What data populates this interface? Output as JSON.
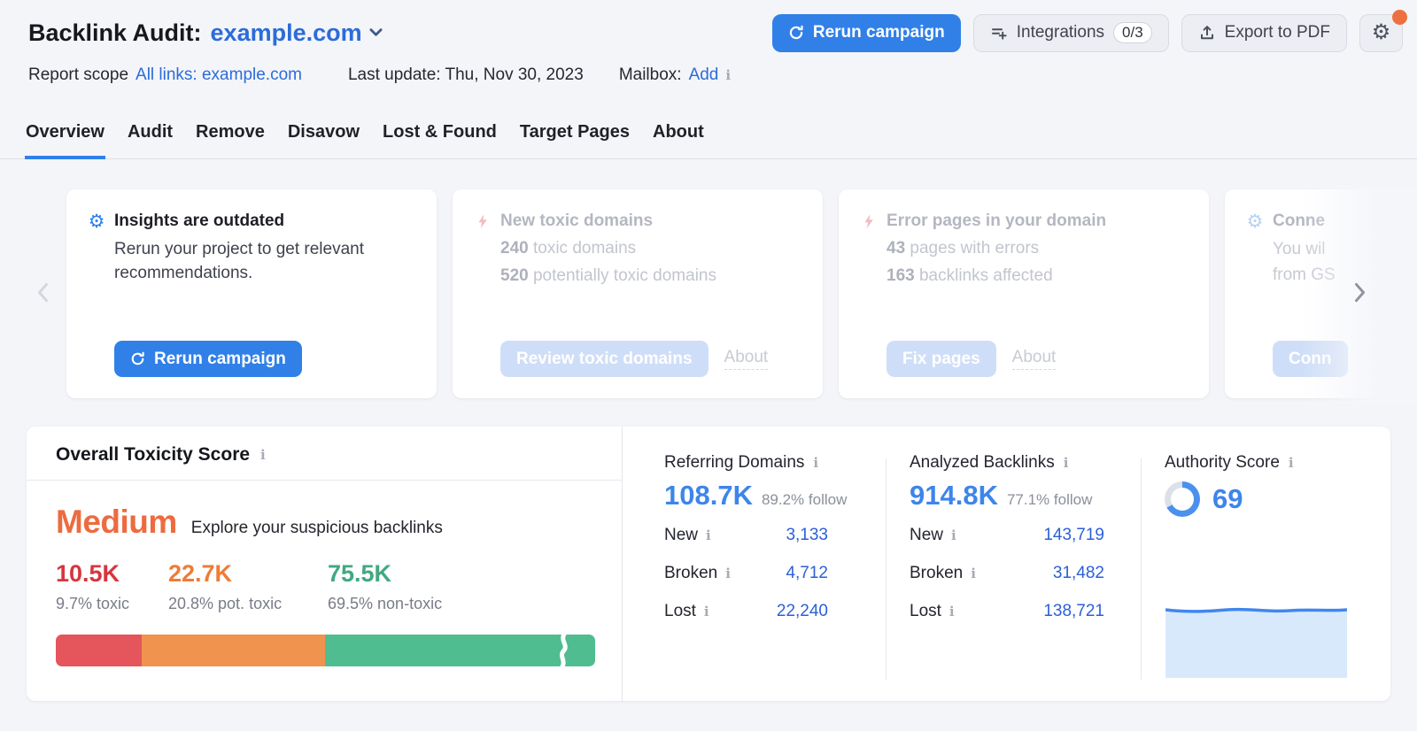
{
  "colors": {
    "accent_blue": "#3080e8",
    "link_blue": "#2b6cd9",
    "value_blue": "#2b5fd9",
    "big_number_blue": "#3d85ec",
    "notification_orange": "#ee7040",
    "donut_gray": "#dbe0e9",
    "donut_blue": "#4a90ee"
  },
  "header": {
    "title": "Backlink Audit:",
    "project": "example.com",
    "rerun_button": "Rerun campaign",
    "integrations_button": "Integrations",
    "integrations_badge": "0/3",
    "export_button": "Export to PDF",
    "meta": {
      "scope_label": "Report scope",
      "scope_link": "All links: example.com",
      "last_update": "Last update: Thu, Nov 30, 2023",
      "mailbox_label": "Mailbox:",
      "mailbox_link": "Add"
    }
  },
  "tabs": [
    "Overview",
    "Audit",
    "Remove",
    "Disavow",
    "Lost & Found",
    "Target Pages",
    "About"
  ],
  "cards": {
    "insights": {
      "title": "Insights are outdated",
      "body": "Rerun your project to get relevant recommendations.",
      "button": "Rerun campaign"
    },
    "toxic_domains": {
      "title": "New toxic domains",
      "stat1_value": "240",
      "stat1_label": "toxic domains",
      "stat2_value": "520",
      "stat2_label": "potentially toxic domains",
      "button": "Review toxic domains",
      "about": "About"
    },
    "error_pages": {
      "title": "Error pages in your domain",
      "stat1_value": "43",
      "stat1_label": "pages with errors",
      "stat2_value": "163",
      "stat2_label": "backlinks affected",
      "button": "Fix pages",
      "about": "About"
    },
    "connect": {
      "title": "Conne",
      "line1": "You wil",
      "line2": "from GS",
      "button": "Conn"
    }
  },
  "toxicity": {
    "title": "Overall Toxicity Score",
    "level": "Medium",
    "level_color": "#ed6b3f",
    "subtitle": "Explore your suspicious backlinks",
    "segments": [
      {
        "value": "10.5K",
        "label": "9.7% toxic",
        "color": "#d6363f",
        "bar_color": "#e4555c",
        "bar_pct": 16
      },
      {
        "value": "22.7K",
        "label": "20.8% pot. toxic",
        "color": "#ee7c38",
        "bar_color": "#f0934e",
        "bar_pct": 34
      },
      {
        "value": "75.5K",
        "label": "69.5% non-toxic",
        "color": "#42a881",
        "bar_color": "#4fbd8f",
        "bar_pct": 50
      }
    ]
  },
  "stats": {
    "referring_domains": {
      "title": "Referring Domains",
      "value": "108.7K",
      "follow": "89.2% follow",
      "rows": [
        {
          "label": "New",
          "value": "3,133"
        },
        {
          "label": "Broken",
          "value": "4,712"
        },
        {
          "label": "Lost",
          "value": "22,240"
        }
      ]
    },
    "analyzed_backlinks": {
      "title": "Analyzed Backlinks",
      "value": "914.8K",
      "follow": "77.1% follow",
      "rows": [
        {
          "label": "New",
          "value": "143,719"
        },
        {
          "label": "Broken",
          "value": "31,482"
        },
        {
          "label": "Lost",
          "value": "138,721"
        }
      ]
    },
    "authority_score": {
      "title": "Authority Score",
      "value": "69",
      "donut_pct": 69
    }
  }
}
